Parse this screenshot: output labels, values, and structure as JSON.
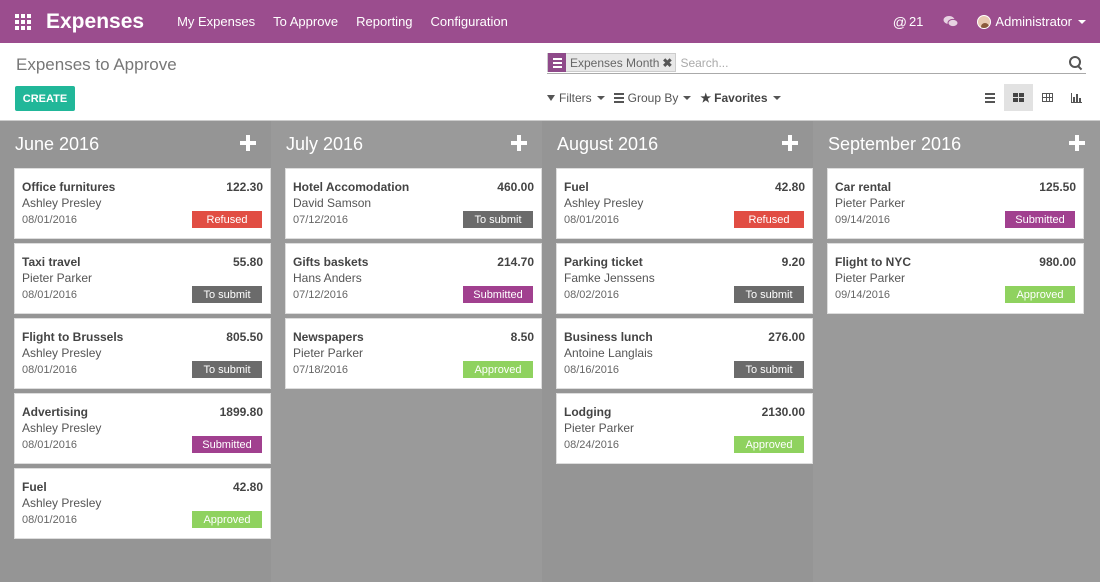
{
  "topbar": {
    "app_title": "Expenses",
    "menu": [
      "My Expenses",
      "To Approve",
      "Reporting",
      "Configuration"
    ],
    "mentions": "21",
    "user": "Administrator"
  },
  "control": {
    "breadcrumb": "Expenses to Approve",
    "create_label": "CREATE",
    "facet": "Expenses Month",
    "search_placeholder": "Search...",
    "filters_label": "Filters",
    "groupby_label": "Group By",
    "favorites_label": "Favorites",
    "active_view": "kanban"
  },
  "status_colors": {
    "Refused": "#e14d43",
    "To submit": "#6b6b6b",
    "Submitted": "#a1408f",
    "Approved": "#8fd25f"
  },
  "columns": [
    {
      "title": "June 2016",
      "cards": [
        {
          "title": "Office furnitures",
          "amount": "122.30",
          "employee": "Ashley Presley",
          "date": "08/01/2016",
          "status": "Refused"
        },
        {
          "title": "Taxi travel",
          "amount": "55.80",
          "employee": "Pieter Parker",
          "date": "08/01/2016",
          "status": "To submit"
        },
        {
          "title": "Flight to Brussels",
          "amount": "805.50",
          "employee": "Ashley Presley",
          "date": "08/01/2016",
          "status": "To submit"
        },
        {
          "title": "Advertising",
          "amount": "1899.80",
          "employee": "Ashley Presley",
          "date": "08/01/2016",
          "status": "Submitted"
        },
        {
          "title": "Fuel",
          "amount": "42.80",
          "employee": "Ashley Presley",
          "date": "08/01/2016",
          "status": "Approved"
        }
      ]
    },
    {
      "title": "July 2016",
      "cards": [
        {
          "title": "Hotel Accomodation",
          "amount": "460.00",
          "employee": "David Samson",
          "date": "07/12/2016",
          "status": "To submit"
        },
        {
          "title": "Gifts baskets",
          "amount": "214.70",
          "employee": "Hans Anders",
          "date": "07/12/2016",
          "status": "Submitted"
        },
        {
          "title": "Newspapers",
          "amount": "8.50",
          "employee": "Pieter Parker",
          "date": "07/18/2016",
          "status": "Approved"
        }
      ]
    },
    {
      "title": "August 2016",
      "cards": [
        {
          "title": "Fuel",
          "amount": "42.80",
          "employee": "Ashley Presley",
          "date": "08/01/2016",
          "status": "Refused"
        },
        {
          "title": "Parking ticket",
          "amount": "9.20",
          "employee": "Famke Jenssens",
          "date": "08/02/2016",
          "status": "To submit"
        },
        {
          "title": "Business lunch",
          "amount": "276.00",
          "employee": "Antoine Langlais",
          "date": "08/16/2016",
          "status": "To submit"
        },
        {
          "title": "Lodging",
          "amount": "2130.00",
          "employee": "Pieter Parker",
          "date": "08/24/2016",
          "status": "Approved"
        }
      ]
    },
    {
      "title": "September 2016",
      "cards": [
        {
          "title": "Car rental",
          "amount": "125.50",
          "employee": "Pieter Parker",
          "date": "09/14/2016",
          "status": "Submitted"
        },
        {
          "title": "Flight to NYC",
          "amount": "980.00",
          "employee": "Pieter Parker",
          "date": "09/14/2016",
          "status": "Approved"
        }
      ]
    }
  ]
}
